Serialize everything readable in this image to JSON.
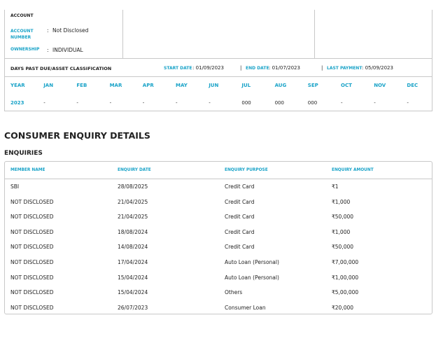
{
  "account": {
    "heading": "ACCOUNT",
    "fields": [
      {
        "label": "ACCOUNT NUMBER",
        "value": "Not Disclosed"
      },
      {
        "label": "OWNERSHIP",
        "value": "INDIVIDUAL"
      }
    ]
  },
  "dpd": {
    "title": "DAYS PAST DUE/ASSET CLASSIFICATION",
    "start_label": "START DATE",
    "start_value": "01/09/2023",
    "end_label": "END DATE",
    "end_value": "01/07/2023",
    "last_label": "LAST PAYMENT",
    "last_value": "05/09/2023",
    "headers": [
      "YEAR",
      "JAN",
      "FEB",
      "MAR",
      "APR",
      "MAY",
      "JUN",
      "JUL",
      "AUG",
      "SEP",
      "OCT",
      "NOV",
      "DEC"
    ],
    "row": [
      "2023",
      "-",
      "-",
      "-",
      "-",
      "-",
      "-",
      "000",
      "000",
      "000",
      "-",
      "-",
      "-"
    ]
  },
  "section_title": "CONSUMER ENQUIRY DETAILS",
  "enquiries": {
    "title": "ENQUIRIES",
    "columns": [
      "MEMBER NAME",
      "ENQUIRY DATE",
      "ENQUIRY PURPOSE",
      "ENQUIRY AMOUNT"
    ],
    "rows": [
      [
        "SBI",
        "28/08/2025",
        "Credit Card",
        "₹1"
      ],
      [
        "NOT DISCLOSED",
        "21/04/2025",
        "Credit Card",
        "₹1,000"
      ],
      [
        "NOT DISCLOSED",
        "21/04/2025",
        "Credit Card",
        "₹50,000"
      ],
      [
        "NOT DISCLOSED",
        "18/08/2024",
        "Credit Card",
        "₹1,000"
      ],
      [
        "NOT DISCLOSED",
        "14/08/2024",
        "Credit Card",
        "₹50,000"
      ],
      [
        "NOT DISCLOSED",
        "17/04/2024",
        "Auto Loan (Personal)",
        "₹7,00,000"
      ],
      [
        "NOT DISCLOSED",
        "15/04/2024",
        "Auto Loan (Personal)",
        "₹1,00,000"
      ],
      [
        "NOT DISCLOSED",
        "15/04/2024",
        "Others",
        "₹5,00,000"
      ],
      [
        "NOT DISCLOSED",
        "26/07/2023",
        "Consumer Loan",
        "₹20,000"
      ]
    ]
  },
  "colors": {
    "accent": "#1aa3c8",
    "border": "#c8c8c8",
    "text": "#222222"
  }
}
